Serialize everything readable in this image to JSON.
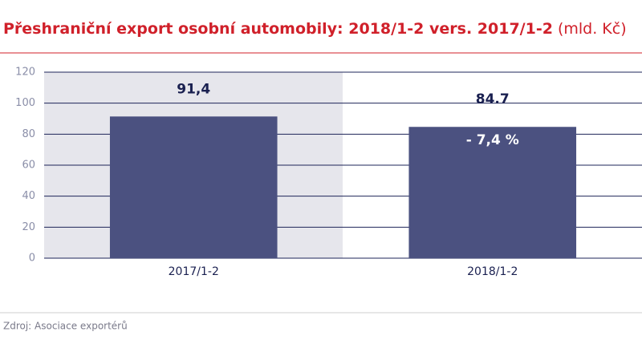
{
  "chart_data": {
    "type": "bar",
    "title": "Přeshraniční export osobní automobily: 2018/1-2 vers. 2017/1-2",
    "unit": "(mld. Kč)",
    "categories": [
      "2017/1-2",
      "2018/1-2"
    ],
    "values": [
      91.4,
      84.7
    ],
    "value_labels": [
      "91,4",
      "84.7"
    ],
    "color": "#4b5180",
    "annotation": "- 7,4 %",
    "ylim": [
      0,
      120
    ],
    "yticks": [
      0,
      20,
      40,
      60,
      80,
      100,
      120
    ],
    "grid": true,
    "source": "Zdroj: Asociace exportérů"
  }
}
